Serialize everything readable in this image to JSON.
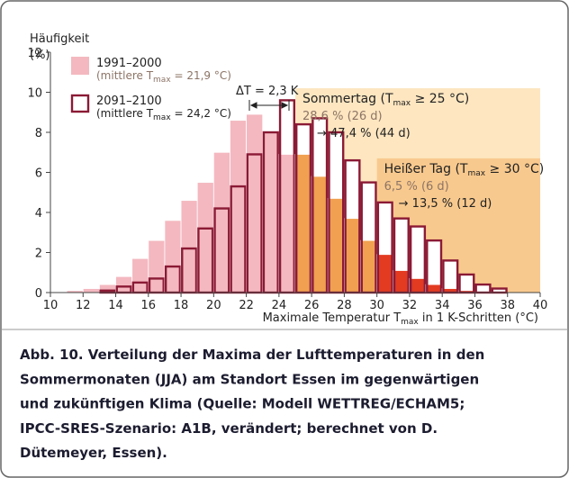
{
  "chart_data": {
    "type": "histogram",
    "y_label": [
      "Häufigkeit",
      "(%)"
    ],
    "x_label": [
      "Maximale Temperatur T",
      "max",
      " in 1 K-Schritten (°C)"
    ],
    "bins": [
      11,
      12,
      13,
      14,
      15,
      16,
      17,
      18,
      19,
      20,
      21,
      22,
      23,
      24,
      25,
      26,
      27,
      28,
      29,
      30,
      31,
      32,
      33,
      34,
      35,
      36,
      37,
      38
    ],
    "series": [
      {
        "name": "1991–2000",
        "note": [
          "(mittlere T",
          "max",
          " = 21,9 °C)"
        ],
        "color": "#f4b8c0",
        "style": "filled",
        "values": [
          0.1,
          0.2,
          0.4,
          0.8,
          1.7,
          2.6,
          3.6,
          4.6,
          5.5,
          7.0,
          8.6,
          8.9,
          8.0,
          6.9,
          6.9,
          5.8,
          4.7,
          3.7,
          2.6,
          1.9,
          1.1,
          0.7,
          0.4,
          0.2,
          0.1,
          0.0,
          0.0
        ]
      },
      {
        "name": "2091–2100",
        "note": [
          "(mittlere T",
          "max",
          " = 24,2 °C)"
        ],
        "color": "#8b1a35",
        "style": "outline",
        "values": [
          0,
          0,
          0.1,
          0.3,
          0.5,
          0.7,
          1.3,
          2.2,
          3.2,
          4.2,
          5.3,
          6.9,
          8.0,
          9.6,
          8.4,
          8.7,
          8.0,
          6.6,
          5.5,
          4.5,
          3.7,
          3.3,
          2.6,
          1.6,
          0.9,
          0.4,
          0.2
        ]
      }
    ],
    "regions": [
      {
        "label": [
          "Sommertag (T",
          "max",
          " ≥ 25 °C)"
        ],
        "past": "28,6 % (26 d)",
        "future": "→ 47,4 % (44 d)",
        "xmin": 25,
        "ymax": 10.2,
        "color": "#fde6c0",
        "bar_color": "#f0a050"
      },
      {
        "label": [
          "Heißer Tag (T",
          "max",
          " ≥ 30 °C)"
        ],
        "past": "6,5 % (6 d)",
        "future": "→ 13,5 % (12 d)",
        "xmin": 30,
        "ymax": 6.7,
        "color": "#f8c98e",
        "bar_color": "#e23b22"
      }
    ],
    "delta_t": "ΔT = 2,3 K",
    "xlim": [
      10,
      40
    ],
    "xticks": [
      10,
      12,
      14,
      16,
      18,
      20,
      22,
      24,
      26,
      28,
      30,
      32,
      34,
      36,
      38,
      40
    ],
    "ylim": [
      0,
      12
    ],
    "yticks": [
      0,
      2,
      4,
      6,
      8,
      10,
      12
    ],
    "grid": false
  },
  "caption": [
    "Abb. 10. Verteilung der Maxima der Lufttemperaturen in den",
    "Sommermonaten (JJA) am Standort Essen im gegenwärtigen",
    "und zukünftigen Klima (Quelle: Modell WETTREG/ECHAM5;",
    "IPCC-SRES-Szenario: A1B, verändert; berechnet von D.",
    "Dütemeyer, Essen)."
  ]
}
